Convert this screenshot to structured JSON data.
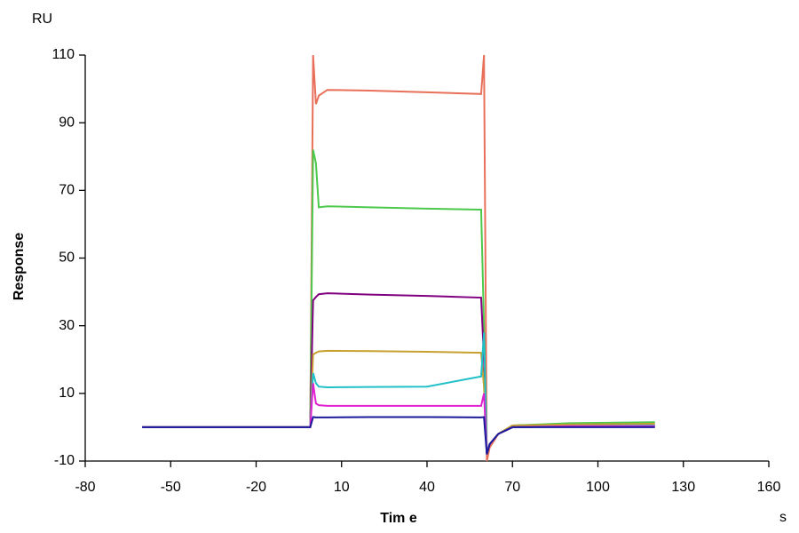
{
  "chart_data": {
    "type": "line",
    "y_unit": "RU",
    "ylabel": "Response",
    "xlabel": "Tim e",
    "x_unit": "s",
    "x": [
      -60,
      -1,
      0,
      1,
      2,
      5,
      20,
      40,
      59,
      60,
      61,
      62,
      65,
      70,
      90,
      120
    ],
    "series": [
      {
        "color": "#e8705a",
        "values": [
          0,
          0,
          110,
          95.5,
          98,
          99.7,
          99.5,
          99,
          98.5,
          110,
          -10,
          -6,
          -2,
          0.5,
          1,
          1.2
        ]
      },
      {
        "color": "#4cc94c",
        "values": [
          0,
          0,
          82,
          78,
          65,
          65.3,
          65,
          64.6,
          64.3,
          30,
          -8,
          -5,
          -2,
          0.5,
          1.2,
          1.5
        ]
      },
      {
        "color": "#800080",
        "values": [
          0,
          0,
          37.5,
          38.5,
          39.3,
          39.6,
          39.2,
          38.8,
          38.3,
          20,
          -8,
          -5,
          -2,
          0,
          0.2,
          0.3
        ]
      },
      {
        "color": "#c8a030",
        "values": [
          0,
          0,
          21.5,
          22,
          22.4,
          22.6,
          22.5,
          22.3,
          22,
          12,
          -8,
          -5,
          -2,
          0.5,
          0.8,
          1
        ]
      },
      {
        "color": "#20c0c8",
        "values": [
          0,
          0,
          16,
          13,
          12,
          11.8,
          11.9,
          12,
          15,
          28,
          -8,
          -5,
          -2,
          0,
          0.3,
          0.5
        ]
      },
      {
        "color": "#e020d0",
        "values": [
          0,
          0,
          13,
          7,
          6.5,
          6.3,
          6.3,
          6.3,
          6.3,
          10,
          -8,
          -5,
          -2,
          0,
          0.3,
          0.3
        ]
      },
      {
        "color": "#1a1a9a",
        "values": [
          0,
          0,
          3,
          2.9,
          2.9,
          2.9,
          3,
          3,
          2.9,
          3,
          -8,
          -5,
          -2,
          0,
          0,
          0
        ]
      }
    ],
    "xlim": [
      -80,
      160
    ],
    "xticks": [
      -80,
      -50,
      -20,
      10,
      40,
      70,
      100,
      130,
      160
    ],
    "ylim": [
      -10,
      110
    ],
    "yticks": [
      -10,
      10,
      30,
      50,
      70,
      90,
      110
    ]
  }
}
